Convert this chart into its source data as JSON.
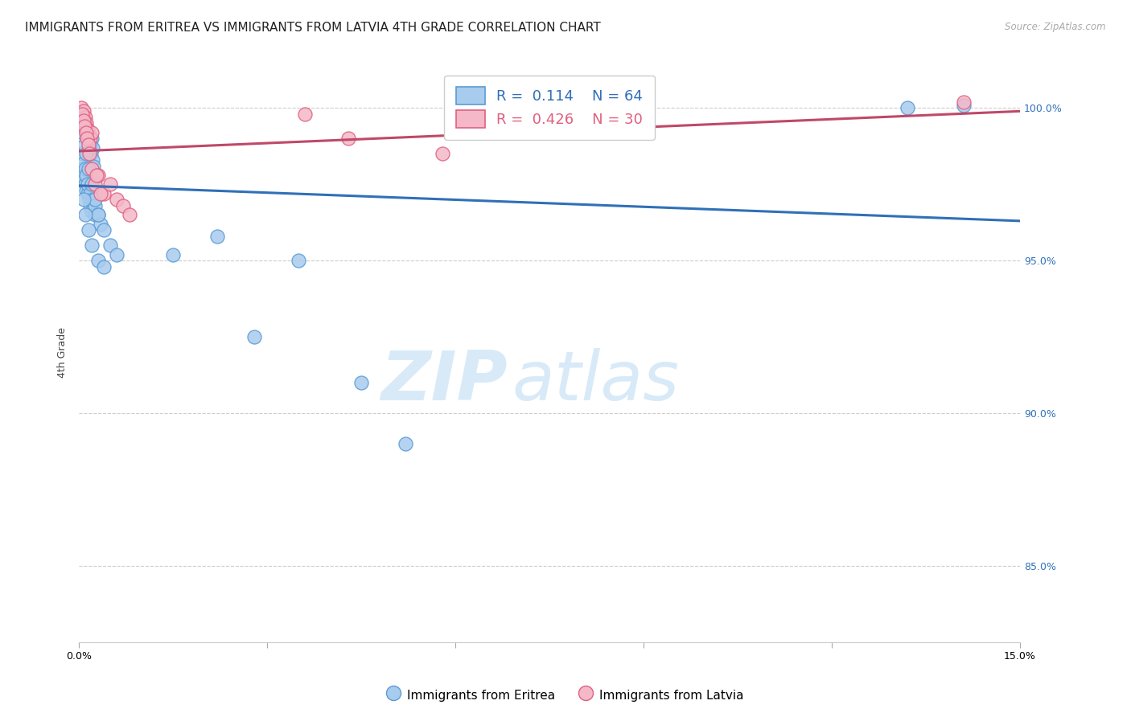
{
  "title": "IMMIGRANTS FROM ERITREA VS IMMIGRANTS FROM LATVIA 4TH GRADE CORRELATION CHART",
  "source": "Source: ZipAtlas.com",
  "ylabel": "4th Grade",
  "xlim": [
    0.0,
    15.0
  ],
  "ylim": [
    82.5,
    101.5
  ],
  "legend_blue_label": "Immigrants from Eritrea",
  "legend_pink_label": "Immigrants from Latvia",
  "R_blue": 0.114,
  "N_blue": 64,
  "R_pink": 0.426,
  "N_pink": 30,
  "blue_fill_color": "#a8ccee",
  "blue_edge_color": "#5b9bd5",
  "pink_fill_color": "#f4b8c8",
  "pink_edge_color": "#e06080",
  "blue_line_color": "#3070b8",
  "pink_line_color": "#c04868",
  "background_color": "#ffffff",
  "grid_color": "#cccccc",
  "title_fontsize": 11,
  "axis_label_fontsize": 9,
  "tick_fontsize": 9,
  "watermark_zip": "ZIP",
  "watermark_atlas": "atlas",
  "watermark_color": "#d8eaf8",
  "watermark_fontsize_zip": 62,
  "watermark_fontsize_atlas": 62,
  "blue_scatter_x": [
    0.04,
    0.06,
    0.08,
    0.1,
    0.12,
    0.14,
    0.16,
    0.18,
    0.2,
    0.22,
    0.05,
    0.07,
    0.09,
    0.11,
    0.13,
    0.15,
    0.17,
    0.19,
    0.21,
    0.23,
    0.04,
    0.06,
    0.08,
    0.1,
    0.12,
    0.14,
    0.16,
    0.18,
    0.2,
    0.25,
    0.05,
    0.08,
    0.1,
    0.12,
    0.14,
    0.18,
    0.22,
    0.26,
    0.3,
    0.35,
    0.06,
    0.09,
    0.12,
    0.15,
    0.2,
    0.25,
    0.3,
    0.4,
    0.5,
    0.6,
    0.07,
    0.1,
    0.15,
    0.2,
    0.3,
    0.4,
    3.5,
    1.5,
    2.2,
    2.8,
    13.2,
    14.1,
    5.2,
    4.5
  ],
  "blue_scatter_y": [
    99.6,
    99.4,
    99.7,
    99.5,
    99.3,
    99.1,
    98.9,
    98.8,
    99.0,
    98.7,
    99.8,
    99.6,
    99.4,
    99.2,
    99.0,
    98.8,
    98.6,
    98.5,
    98.3,
    98.1,
    98.0,
    97.8,
    97.6,
    97.5,
    97.3,
    97.2,
    97.0,
    96.8,
    96.6,
    96.5,
    98.5,
    98.2,
    98.0,
    97.8,
    97.5,
    97.2,
    97.0,
    96.8,
    96.5,
    96.2,
    99.2,
    98.8,
    98.5,
    98.0,
    97.5,
    97.0,
    96.5,
    96.0,
    95.5,
    95.2,
    97.0,
    96.5,
    96.0,
    95.5,
    95.0,
    94.8,
    95.0,
    95.2,
    95.8,
    92.5,
    100.0,
    100.1,
    89.0,
    91.0
  ],
  "pink_scatter_x": [
    0.04,
    0.06,
    0.08,
    0.1,
    0.12,
    0.14,
    0.16,
    0.18,
    0.2,
    0.05,
    0.07,
    0.09,
    0.11,
    0.13,
    0.15,
    0.17,
    0.2,
    0.25,
    0.3,
    0.4,
    0.5,
    0.6,
    0.7,
    0.8,
    3.6,
    4.3,
    5.8,
    14.1,
    0.35,
    0.28
  ],
  "pink_scatter_y": [
    100.0,
    99.8,
    99.9,
    99.7,
    99.5,
    99.3,
    99.1,
    99.0,
    99.2,
    99.8,
    99.6,
    99.4,
    99.2,
    99.0,
    98.8,
    98.5,
    98.0,
    97.5,
    97.8,
    97.2,
    97.5,
    97.0,
    96.8,
    96.5,
    99.8,
    99.0,
    98.5,
    100.2,
    97.2,
    97.8
  ],
  "ytick_positions": [
    85.0,
    90.0,
    95.0,
    100.0
  ],
  "ytick_labels": [
    "85.0%",
    "90.0%",
    "95.0%",
    "100.0%"
  ]
}
